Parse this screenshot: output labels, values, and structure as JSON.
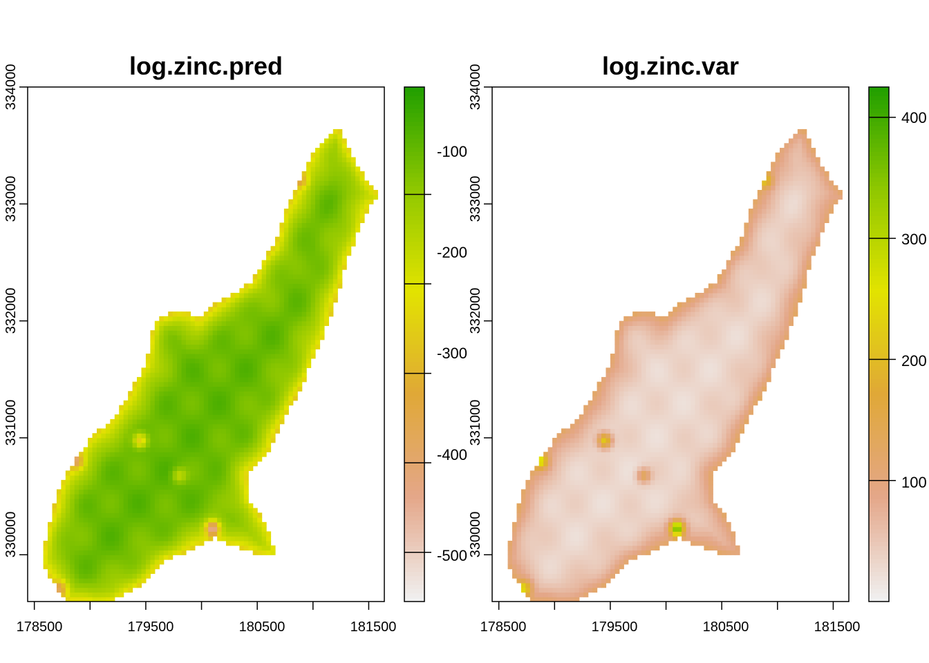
{
  "chart_data": [
    {
      "type": "heatmap",
      "title": "log.zinc.pred",
      "xlabel": "",
      "ylabel": "",
      "x_ticks": [
        "178500",
        "179500",
        "180500",
        "181500"
      ],
      "y_ticks": [
        "330000",
        "331000",
        "332000",
        "333000",
        "334000"
      ],
      "xlim": [
        178440,
        181640
      ],
      "ylim": [
        329600,
        334000
      ],
      "colorbar": {
        "range": [
          -555,
          20
        ],
        "ticks": [
          "-100",
          "-200",
          "-300",
          "-400",
          "-500"
        ],
        "tick_values": [
          -100,
          -200,
          -300,
          -400,
          -500
        ],
        "colors": [
          "#f0f0f0",
          "#e4a789",
          "#e0a837",
          "#e2e300",
          "#8ec700",
          "#1e9e00"
        ]
      },
      "field_style": "pred",
      "grid": false
    },
    {
      "type": "heatmap",
      "title": "log.zinc.var",
      "xlabel": "",
      "ylabel": "",
      "x_ticks": [
        "178500",
        "179500",
        "180500",
        "181500"
      ],
      "y_ticks": [
        "330000",
        "331000",
        "332000",
        "333000",
        "334000"
      ],
      "xlim": [
        178440,
        181640
      ],
      "ylim": [
        329600,
        334000
      ],
      "colorbar": {
        "range": [
          0,
          425
        ],
        "ticks": [
          "100",
          "200",
          "300",
          "400"
        ],
        "tick_values": [
          100,
          200,
          300,
          400
        ],
        "colors": [
          "#f0f0f0",
          "#e4a789",
          "#e0a837",
          "#e2e300",
          "#8ec700",
          "#1e9e00"
        ]
      },
      "field_style": "var",
      "grid": false
    }
  ]
}
